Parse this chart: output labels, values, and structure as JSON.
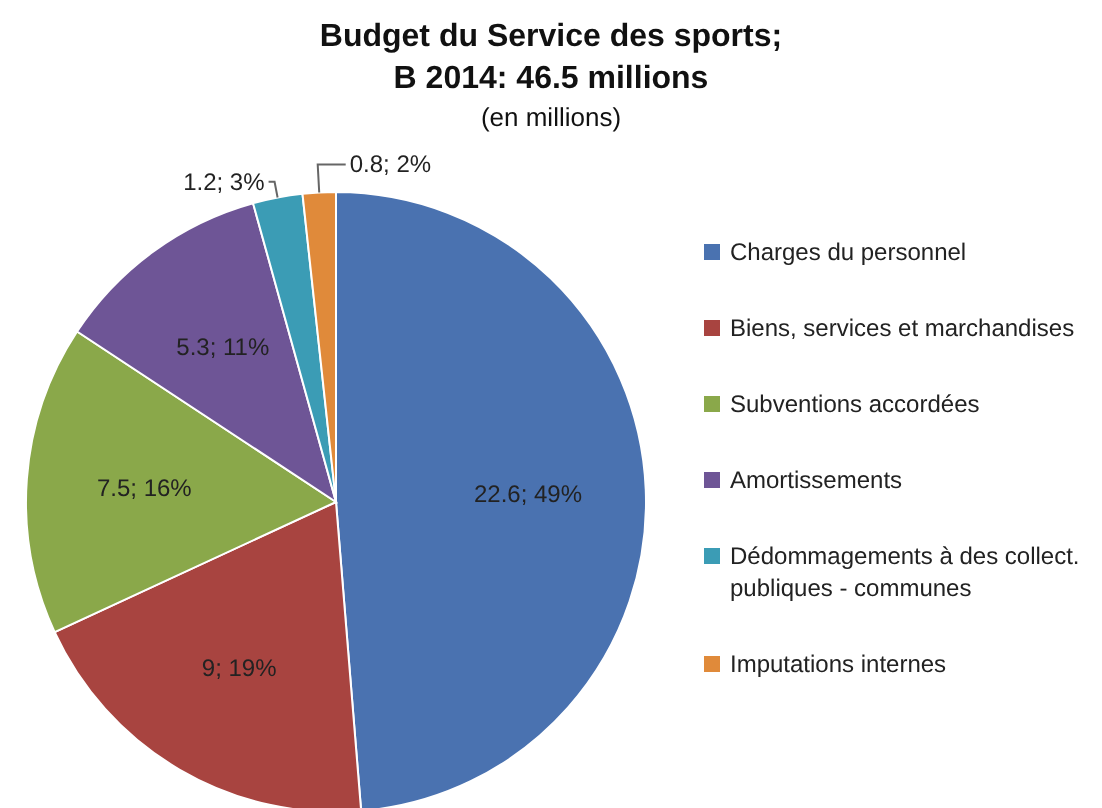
{
  "chart_data": {
    "type": "pie",
    "title": "Budget du Service des sports;\nB 2014: 46.5 millions",
    "subtitle": "(en millions)",
    "categories": [
      "Charges du personnel",
      "Biens, services et marchandises",
      "Subventions accordées",
      "Amortissements",
      "Dédommagements à des collect. publiques - communes",
      "Imputations internes"
    ],
    "values": [
      22.6,
      9,
      7.5,
      5.3,
      1.2,
      0.8
    ],
    "colors": [
      "#4a72b0",
      "#a84440",
      "#8aa84a",
      "#6e5596",
      "#3b9cb5",
      "#e08a3a"
    ],
    "value_labels": [
      "22.6; 49%",
      "9; 19%",
      "7.5; 16%",
      "5.3; 11%",
      "1.2; 3%",
      "0.8; 2%"
    ],
    "legend": "right"
  }
}
